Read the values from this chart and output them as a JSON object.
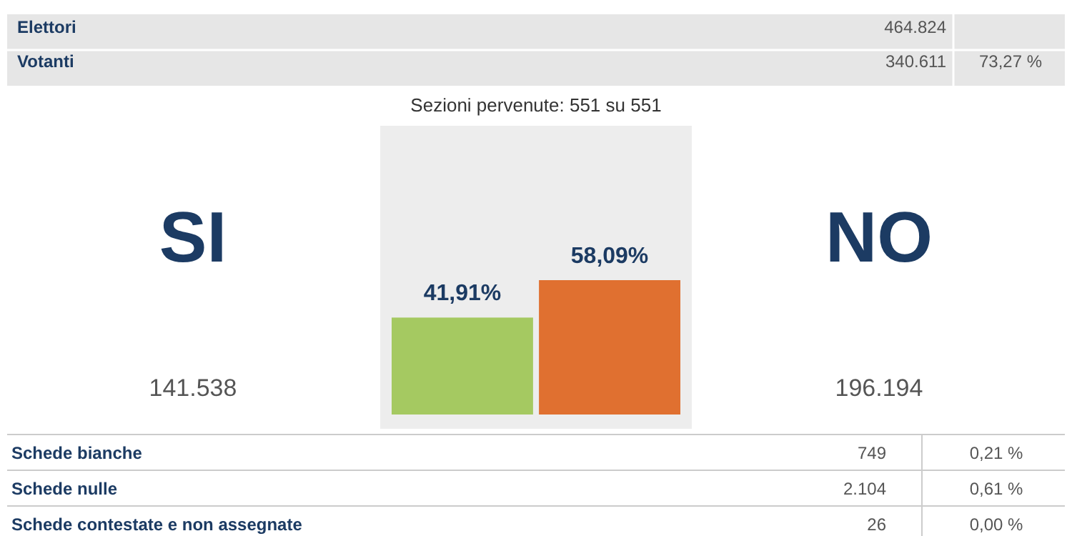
{
  "chart_data": {
    "type": "bar",
    "title": "Sezioni pervenute: 551 su 551",
    "categories": [
      "SI",
      "NO"
    ],
    "values": [
      41.91,
      58.09
    ],
    "colors": [
      "#a5c961",
      "#e07030"
    ],
    "value_labels": [
      "41,91%",
      "58,09%"
    ],
    "annotations": [
      "Elettori",
      "464.824",
      "Votanti",
      "340.611",
      "73,27 %",
      "141.538",
      "196.194",
      "Schede bianche",
      "749",
      "0,21 %",
      "Schede nulle",
      "2.104",
      "0,61 %",
      "Schede contestate e non assegnate",
      "26",
      "0,00 %"
    ]
  }
}
